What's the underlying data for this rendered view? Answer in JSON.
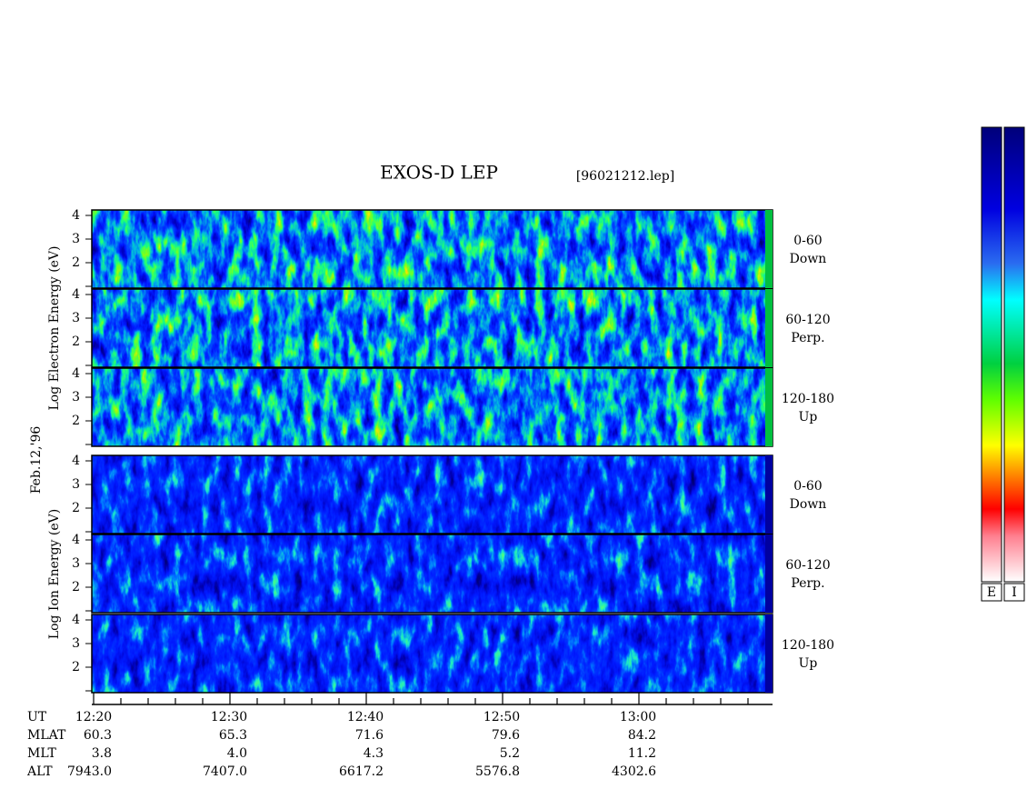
{
  "header": {
    "title": "EXOS-D LEP",
    "file": "[96021212.lep]"
  },
  "date": "Feb.12,'96",
  "groups": [
    {
      "axis_label": "Log  Electron  Energy (eV)",
      "panels": [
        {
          "yticks": [
            "4",
            "3",
            "2"
          ],
          "label": [
            "0-60",
            "Down"
          ]
        },
        {
          "yticks": [
            "4",
            "3",
            "2"
          ],
          "label": [
            "60-120",
            "Perp."
          ]
        },
        {
          "yticks": [
            "4",
            "3",
            "2"
          ],
          "label": [
            "120-180",
            "Up"
          ]
        }
      ]
    },
    {
      "axis_label": "Log  Ion  Energy (eV)",
      "panels": [
        {
          "yticks": [
            "4",
            "3",
            "2"
          ],
          "label": [
            "0-60",
            "Down"
          ]
        },
        {
          "yticks": [
            "4",
            "3",
            "2"
          ],
          "label": [
            "60-120",
            "Perp."
          ]
        },
        {
          "yticks": [
            "4",
            "3",
            "2"
          ],
          "label": [
            "120-180",
            "Up"
          ]
        }
      ]
    }
  ],
  "orbit_table": {
    "row_names": [
      "UT",
      "MLAT",
      "MLT",
      "ALT"
    ],
    "columns": [
      [
        "12:20",
        "60.3",
        "3.8",
        "7943.0"
      ],
      [
        "12:30",
        "65.3",
        "4.0",
        "7407.0"
      ],
      [
        "12:40",
        "71.6",
        "4.3",
        "6617.2"
      ],
      [
        "12:50",
        "79.6",
        "5.2",
        "5576.8"
      ],
      [
        "13:00",
        "84.2",
        "11.2",
        "4302.6"
      ]
    ]
  },
  "colorbars": [
    "E",
    "I"
  ]
}
